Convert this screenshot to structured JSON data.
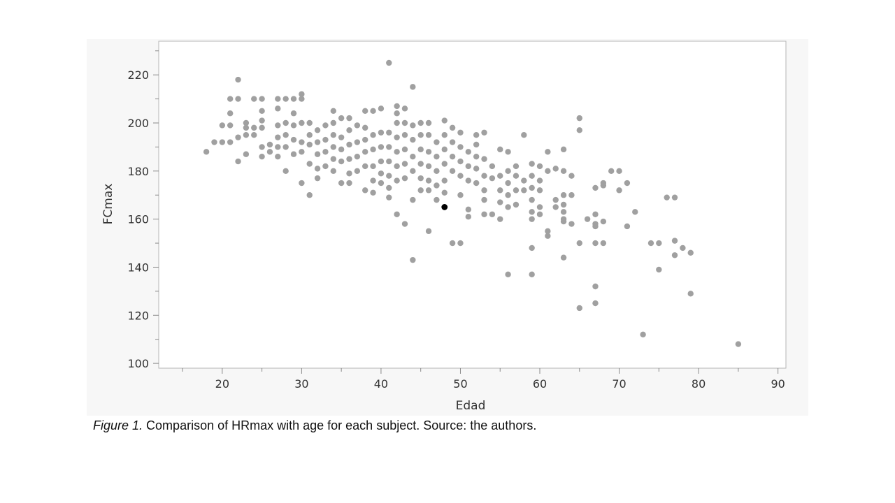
{
  "chart_data": {
    "type": "scatter",
    "title": "",
    "xlabel": "Edad",
    "ylabel": "FCmax",
    "xlim": [
      12,
      91
    ],
    "ylim": [
      98,
      234
    ],
    "xticks": [
      20,
      30,
      40,
      50,
      60,
      70,
      80,
      90
    ],
    "yticks": [
      100,
      120,
      140,
      160,
      180,
      200,
      220
    ],
    "grid": false,
    "legend": "none",
    "point_color": "#a0a0a0",
    "highlight_color": "#000000",
    "highlight_point": [
      48,
      165
    ],
    "points": [
      [
        18,
        188
      ],
      [
        19,
        192
      ],
      [
        20,
        192
      ],
      [
        20,
        199
      ],
      [
        21,
        192
      ],
      [
        21,
        199
      ],
      [
        21,
        204
      ],
      [
        21,
        210
      ],
      [
        22,
        184
      ],
      [
        22,
        194
      ],
      [
        22,
        210
      ],
      [
        22,
        218
      ],
      [
        23,
        187
      ],
      [
        23,
        195
      ],
      [
        23,
        198
      ],
      [
        23,
        200
      ],
      [
        24,
        195
      ],
      [
        24,
        198
      ],
      [
        24,
        210
      ],
      [
        25,
        186
      ],
      [
        25,
        190
      ],
      [
        25,
        198
      ],
      [
        25,
        201
      ],
      [
        25,
        205
      ],
      [
        25,
        210
      ],
      [
        26,
        188
      ],
      [
        26,
        191
      ],
      [
        27,
        186
      ],
      [
        27,
        190
      ],
      [
        27,
        194
      ],
      [
        27,
        199
      ],
      [
        27,
        206
      ],
      [
        27,
        210
      ],
      [
        28,
        180
      ],
      [
        28,
        190
      ],
      [
        28,
        195
      ],
      [
        28,
        200
      ],
      [
        28,
        210
      ],
      [
        29,
        187
      ],
      [
        29,
        193
      ],
      [
        29,
        199
      ],
      [
        29,
        204
      ],
      [
        29,
        210
      ],
      [
        30,
        175
      ],
      [
        30,
        188
      ],
      [
        30,
        192
      ],
      [
        30,
        200
      ],
      [
        30,
        210
      ],
      [
        30,
        212
      ],
      [
        31,
        170
      ],
      [
        31,
        183
      ],
      [
        31,
        191
      ],
      [
        31,
        195
      ],
      [
        31,
        200
      ],
      [
        32,
        177
      ],
      [
        32,
        181
      ],
      [
        32,
        187
      ],
      [
        32,
        192
      ],
      [
        32,
        197
      ],
      [
        33,
        182
      ],
      [
        33,
        188
      ],
      [
        33,
        193
      ],
      [
        33,
        199
      ],
      [
        34,
        180
      ],
      [
        34,
        185
      ],
      [
        34,
        190
      ],
      [
        34,
        195
      ],
      [
        34,
        200
      ],
      [
        34,
        205
      ],
      [
        35,
        175
      ],
      [
        35,
        184
      ],
      [
        35,
        189
      ],
      [
        35,
        194
      ],
      [
        35,
        202
      ],
      [
        36,
        175
      ],
      [
        36,
        179
      ],
      [
        36,
        185
      ],
      [
        36,
        191
      ],
      [
        36,
        197
      ],
      [
        36,
        202
      ],
      [
        37,
        180
      ],
      [
        37,
        186
      ],
      [
        37,
        192
      ],
      [
        37,
        199
      ],
      [
        38,
        172
      ],
      [
        38,
        182
      ],
      [
        38,
        188
      ],
      [
        38,
        193
      ],
      [
        38,
        198
      ],
      [
        38,
        205
      ],
      [
        39,
        171
      ],
      [
        39,
        176
      ],
      [
        39,
        182
      ],
      [
        39,
        189
      ],
      [
        39,
        195
      ],
      [
        39,
        205
      ],
      [
        40,
        175
      ],
      [
        40,
        179
      ],
      [
        40,
        184
      ],
      [
        40,
        190
      ],
      [
        40,
        196
      ],
      [
        40,
        206
      ],
      [
        41,
        169
      ],
      [
        41,
        173
      ],
      [
        41,
        178
      ],
      [
        41,
        184
      ],
      [
        41,
        190
      ],
      [
        41,
        196
      ],
      [
        41,
        225
      ],
      [
        42,
        162
      ],
      [
        42,
        176
      ],
      [
        42,
        182
      ],
      [
        42,
        188
      ],
      [
        42,
        194
      ],
      [
        42,
        200
      ],
      [
        42,
        204
      ],
      [
        42,
        207
      ],
      [
        43,
        158
      ],
      [
        43,
        177
      ],
      [
        43,
        183
      ],
      [
        43,
        189
      ],
      [
        43,
        195
      ],
      [
        43,
        200
      ],
      [
        43,
        206
      ],
      [
        44,
        143
      ],
      [
        44,
        168
      ],
      [
        44,
        180
      ],
      [
        44,
        186
      ],
      [
        44,
        193
      ],
      [
        44,
        199
      ],
      [
        44,
        215
      ],
      [
        45,
        172
      ],
      [
        45,
        177
      ],
      [
        45,
        183
      ],
      [
        45,
        189
      ],
      [
        45,
        195
      ],
      [
        45,
        200
      ],
      [
        46,
        155
      ],
      [
        46,
        172
      ],
      [
        46,
        176
      ],
      [
        46,
        182
      ],
      [
        46,
        188
      ],
      [
        46,
        195
      ],
      [
        46,
        200
      ],
      [
        47,
        168
      ],
      [
        47,
        174
      ],
      [
        47,
        180
      ],
      [
        47,
        186
      ],
      [
        47,
        192
      ],
      [
        48,
        171
      ],
      [
        48,
        176
      ],
      [
        48,
        183
      ],
      [
        48,
        189
      ],
      [
        48,
        195
      ],
      [
        48,
        201
      ],
      [
        49,
        150
      ],
      [
        49,
        180
      ],
      [
        49,
        186
      ],
      [
        49,
        192
      ],
      [
        49,
        198
      ],
      [
        50,
        150
      ],
      [
        50,
        170
      ],
      [
        50,
        178
      ],
      [
        50,
        184
      ],
      [
        50,
        190
      ],
      [
        50,
        196
      ],
      [
        51,
        161
      ],
      [
        51,
        164
      ],
      [
        51,
        176
      ],
      [
        51,
        182
      ],
      [
        51,
        188
      ],
      [
        52,
        175
      ],
      [
        52,
        181
      ],
      [
        52,
        186
      ],
      [
        52,
        191
      ],
      [
        52,
        195
      ],
      [
        53,
        162
      ],
      [
        53,
        168
      ],
      [
        53,
        172
      ],
      [
        53,
        178
      ],
      [
        53,
        185
      ],
      [
        53,
        196
      ],
      [
        54,
        162
      ],
      [
        54,
        177
      ],
      [
        54,
        182
      ],
      [
        55,
        160
      ],
      [
        55,
        167
      ],
      [
        55,
        172
      ],
      [
        55,
        178
      ],
      [
        55,
        189
      ],
      [
        56,
        137
      ],
      [
        56,
        165
      ],
      [
        56,
        170
      ],
      [
        56,
        175
      ],
      [
        56,
        180
      ],
      [
        56,
        188
      ],
      [
        57,
        166
      ],
      [
        57,
        172
      ],
      [
        57,
        178
      ],
      [
        57,
        182
      ],
      [
        58,
        172
      ],
      [
        58,
        176
      ],
      [
        58,
        195
      ],
      [
        59,
        137
      ],
      [
        59,
        148
      ],
      [
        59,
        160
      ],
      [
        59,
        163
      ],
      [
        59,
        168
      ],
      [
        59,
        173
      ],
      [
        59,
        178
      ],
      [
        59,
        183
      ],
      [
        60,
        162
      ],
      [
        60,
        165
      ],
      [
        60,
        172
      ],
      [
        60,
        176
      ],
      [
        60,
        182
      ],
      [
        61,
        153
      ],
      [
        61,
        155
      ],
      [
        61,
        180
      ],
      [
        61,
        188
      ],
      [
        62,
        165
      ],
      [
        62,
        168
      ],
      [
        62,
        181
      ],
      [
        63,
        144
      ],
      [
        63,
        159
      ],
      [
        63,
        160
      ],
      [
        63,
        163
      ],
      [
        63,
        166
      ],
      [
        63,
        170
      ],
      [
        63,
        180
      ],
      [
        63,
        189
      ],
      [
        64,
        158
      ],
      [
        64,
        170
      ],
      [
        64,
        178
      ],
      [
        65,
        123
      ],
      [
        65,
        150
      ],
      [
        65,
        197
      ],
      [
        65,
        202
      ],
      [
        66,
        160
      ],
      [
        67,
        125
      ],
      [
        67,
        132
      ],
      [
        67,
        150
      ],
      [
        67,
        157
      ],
      [
        67,
        158
      ],
      [
        67,
        162
      ],
      [
        67,
        173
      ],
      [
        68,
        150
      ],
      [
        68,
        159
      ],
      [
        68,
        174
      ],
      [
        68,
        175
      ],
      [
        69,
        180
      ],
      [
        70,
        172
      ],
      [
        70,
        180
      ],
      [
        71,
        157
      ],
      [
        71,
        175
      ],
      [
        72,
        163
      ],
      [
        73,
        112
      ],
      [
        74,
        150
      ],
      [
        75,
        139
      ],
      [
        75,
        150
      ],
      [
        76,
        169
      ],
      [
        77,
        145
      ],
      [
        77,
        151
      ],
      [
        77,
        169
      ],
      [
        78,
        148
      ],
      [
        79,
        129
      ],
      [
        79,
        146
      ],
      [
        85,
        108
      ]
    ]
  },
  "caption": {
    "label": "Figure 1.",
    "text": " Comparison of HRmax with age for each subject. Source: the authors."
  }
}
